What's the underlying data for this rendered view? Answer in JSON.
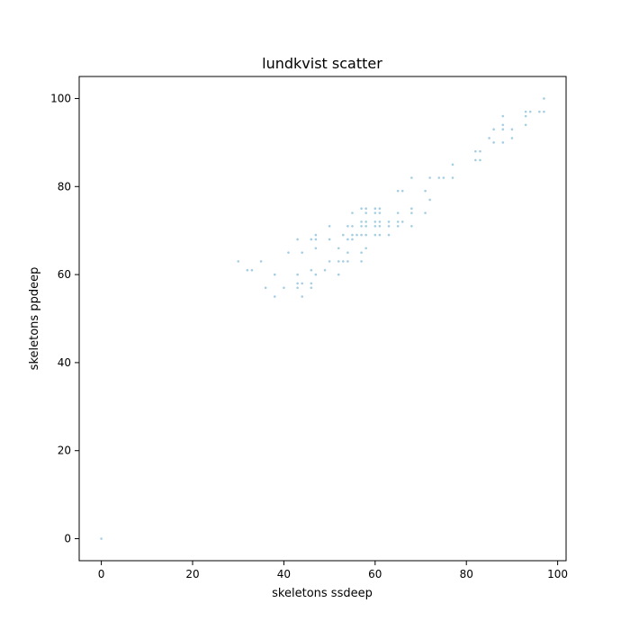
{
  "chart_data": {
    "type": "scatter",
    "title": "lundkvist scatter",
    "xlabel": "skeletons ssdeep",
    "ylabel": "skeletons ppdeep",
    "xlim": [
      -4.85,
      101.85
    ],
    "ylim": [
      -5,
      105
    ],
    "xticks": [
      0,
      20,
      40,
      60,
      80,
      100
    ],
    "yticks": [
      0,
      20,
      40,
      60,
      80,
      100
    ],
    "grid": false,
    "color": "#a6cee3",
    "points": [
      [
        0,
        0
      ],
      [
        30,
        63
      ],
      [
        32,
        61
      ],
      [
        33,
        61
      ],
      [
        35,
        63
      ],
      [
        36,
        57
      ],
      [
        38,
        60
      ],
      [
        38,
        55
      ],
      [
        40,
        57
      ],
      [
        41,
        65
      ],
      [
        43,
        68
      ],
      [
        43,
        60
      ],
      [
        43,
        58
      ],
      [
        43,
        57
      ],
      [
        44,
        65
      ],
      [
        44,
        58
      ],
      [
        44,
        55
      ],
      [
        46,
        68
      ],
      [
        46,
        61
      ],
      [
        46,
        58
      ],
      [
        46,
        57
      ],
      [
        47,
        69
      ],
      [
        47,
        68
      ],
      [
        47,
        66
      ],
      [
        47,
        60
      ],
      [
        49,
        61
      ],
      [
        50,
        71
      ],
      [
        50,
        68
      ],
      [
        50,
        63
      ],
      [
        52,
        66
      ],
      [
        52,
        63
      ],
      [
        52,
        60
      ],
      [
        53,
        69
      ],
      [
        53,
        63
      ],
      [
        54,
        71
      ],
      [
        54,
        68
      ],
      [
        54,
        65
      ],
      [
        54,
        63
      ],
      [
        55,
        74
      ],
      [
        55,
        71
      ],
      [
        55,
        69
      ],
      [
        55,
        68
      ],
      [
        56,
        69
      ],
      [
        57,
        75
      ],
      [
        57,
        72
      ],
      [
        57,
        71
      ],
      [
        57,
        69
      ],
      [
        57,
        65
      ],
      [
        57,
        63
      ],
      [
        58,
        75
      ],
      [
        58,
        74
      ],
      [
        58,
        72
      ],
      [
        58,
        71
      ],
      [
        58,
        69
      ],
      [
        58,
        66
      ],
      [
        60,
        75
      ],
      [
        60,
        74
      ],
      [
        60,
        72
      ],
      [
        60,
        71
      ],
      [
        60,
        69
      ],
      [
        61,
        75
      ],
      [
        61,
        74
      ],
      [
        61,
        72
      ],
      [
        61,
        71
      ],
      [
        61,
        69
      ],
      [
        63,
        72
      ],
      [
        63,
        71
      ],
      [
        63,
        69
      ],
      [
        65,
        79
      ],
      [
        65,
        74
      ],
      [
        65,
        72
      ],
      [
        65,
        71
      ],
      [
        66,
        79
      ],
      [
        66,
        72
      ],
      [
        68,
        82
      ],
      [
        68,
        75
      ],
      [
        68,
        74
      ],
      [
        68,
        71
      ],
      [
        71,
        79
      ],
      [
        71,
        74
      ],
      [
        72,
        82
      ],
      [
        72,
        77
      ],
      [
        74,
        82
      ],
      [
        75,
        82
      ],
      [
        77,
        85
      ],
      [
        77,
        82
      ],
      [
        82,
        88
      ],
      [
        82,
        86
      ],
      [
        83,
        88
      ],
      [
        83,
        86
      ],
      [
        85,
        91
      ],
      [
        86,
        93
      ],
      [
        86,
        90
      ],
      [
        88,
        96
      ],
      [
        88,
        94
      ],
      [
        88,
        93
      ],
      [
        88,
        90
      ],
      [
        90,
        93
      ],
      [
        90,
        91
      ],
      [
        93,
        97
      ],
      [
        93,
        96
      ],
      [
        93,
        94
      ],
      [
        94,
        97
      ],
      [
        96,
        97
      ],
      [
        97,
        100
      ],
      [
        97,
        97
      ]
    ]
  }
}
